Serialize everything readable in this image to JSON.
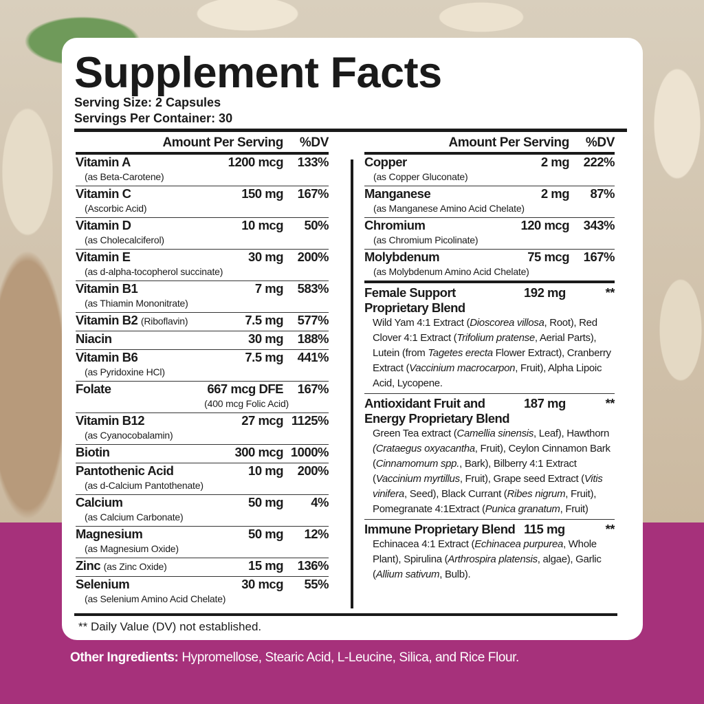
{
  "colors": {
    "accent_band": "#a6317b",
    "card": "#ffffff",
    "text": "#1a1a1a"
  },
  "title": "Supplement Facts",
  "serving_size": "Serving Size: 2 Capsules",
  "servings_per_container": "Servings Per Container: 30",
  "header": {
    "amount": "Amount Per Serving",
    "dv": "%DV"
  },
  "left_rows": [
    {
      "name": "Vitamin A",
      "amount": "1200 mcg",
      "dv": "133%",
      "sub": "(as Beta-Carotene)"
    },
    {
      "name": "Vitamin C",
      "amount": "150 mg",
      "dv": "167%",
      "sub": "(Ascorbic Acid)"
    },
    {
      "name": "Vitamin D",
      "amount": "10 mcg",
      "dv": "50%",
      "sub": "(as Cholecalciferol)"
    },
    {
      "name": "Vitamin E",
      "amount": "30 mg",
      "dv": "200%",
      "sub": "(as d-alpha-tocopherol succinate)"
    },
    {
      "name": "Vitamin B1",
      "amount": "7 mg",
      "dv": "583%",
      "sub": "(as Thiamin Mononitrate)"
    },
    {
      "name": "Vitamin B2",
      "inline": "(Riboflavin)",
      "amount": "7.5 mg",
      "dv": "577%"
    },
    {
      "name": "Niacin",
      "amount": "30 mg",
      "dv": "188%"
    },
    {
      "name": "Vitamin B6",
      "amount": "7.5 mg",
      "dv": "441%",
      "sub": "(as Pyridoxine HCl)"
    },
    {
      "name": "Folate",
      "amount": "667 mcg DFE",
      "dv": "167%",
      "sub_right": "(400 mcg Folic Acid)"
    },
    {
      "name": "Vitamin B12",
      "amount": "27 mcg",
      "dv": "1125%",
      "sub": "(as Cyanocobalamin)"
    },
    {
      "name": "Biotin",
      "amount": "300 mcg",
      "dv": "1000%"
    },
    {
      "name": "Pantothenic Acid",
      "amount": "10 mg",
      "dv": "200%",
      "sub": "(as d-Calcium Pantothenate)"
    },
    {
      "name": "Calcium",
      "amount": "50 mg",
      "dv": "4%",
      "sub": "(as Calcium Carbonate)"
    },
    {
      "name": "Magnesium",
      "amount": "50 mg",
      "dv": "12%",
      "sub": "(as Magnesium Oxide)"
    },
    {
      "name": "Zinc",
      "inline": "(as Zinc Oxide)",
      "amount": "15 mg",
      "dv": "136%"
    },
    {
      "name": "Selenium",
      "amount": "30 mcg",
      "dv": "55%",
      "sub": "(as Selenium Amino Acid Chelate)"
    }
  ],
  "right_rows": [
    {
      "name": "Copper",
      "amount": "2 mg",
      "dv": "222%",
      "sub": "(as Copper Gluconate)"
    },
    {
      "name": "Manganese",
      "amount": "2 mg",
      "dv": "87%",
      "sub": "(as Manganese Amino Acid Chelate)"
    },
    {
      "name": "Chromium",
      "amount": "120 mcg",
      "dv": "343%",
      "sub": "(as Chromium Picolinate)"
    },
    {
      "name": "Molybdenum",
      "amount": "75 mcg",
      "dv": "167%",
      "sub": "(as Molybdenum Amino Acid Chelate)"
    }
  ],
  "blends": [
    {
      "name": "Female Support Proprietary Blend",
      "amount": "192 mg",
      "dv": "**",
      "desc": [
        {
          "t": "Wild Yam 4:1 Extract ("
        },
        {
          "t": "Dioscorea villosa",
          "i": true
        },
        {
          "t": ", Root), Red Clover 4:1 Extract ("
        },
        {
          "t": "Trifolium pratense",
          "i": true
        },
        {
          "t": ", Aerial Parts), Lutein (from "
        },
        {
          "t": "Tagetes erecta",
          "i": true
        },
        {
          "t": " Flower Extract), Cranberry Extract ("
        },
        {
          "t": "Vaccinium macrocarpon",
          "i": true
        },
        {
          "t": ", Fruit), Alpha Lipoic Acid, Lycopene."
        }
      ]
    },
    {
      "name": "Antioxidant Fruit and Energy Proprietary Blend",
      "amount": "187 mg",
      "dv": "**",
      "desc": [
        {
          "t": "Green Tea extract ("
        },
        {
          "t": "Camellia sinensis",
          "i": true
        },
        {
          "t": ", Leaf), Hawthorn "
        },
        {
          "t": "(Crataegus oxyacantha",
          "i": true
        },
        {
          "t": ", Fruit), Ceylon Cinnamon Bark ("
        },
        {
          "t": "Cinnamomum spp.",
          "i": true
        },
        {
          "t": ", Bark), Bilberry 4:1 Extract ("
        },
        {
          "t": "Vaccinium myrtillus",
          "i": true
        },
        {
          "t": ", Fruit), Grape seed Extract ("
        },
        {
          "t": "Vitis vinifera",
          "i": true
        },
        {
          "t": ", Seed), Black Currant ("
        },
        {
          "t": "Ribes nigrum",
          "i": true
        },
        {
          "t": ", Fruit), Pomegranate 4:1Extract ("
        },
        {
          "t": "Punica granatum",
          "i": true
        },
        {
          "t": ", Fruit)"
        }
      ]
    },
    {
      "name": "Immune Proprietary Blend",
      "amount": "115 mg",
      "dv": "**",
      "desc": [
        {
          "t": "Echinacea 4:1 Extract ("
        },
        {
          "t": "Echinacea purpurea",
          "i": true
        },
        {
          "t": ", Whole Plant), Spirulina ("
        },
        {
          "t": "Arthrospira platensis",
          "i": true
        },
        {
          "t": ", algae), Garlic ("
        },
        {
          "t": "Allium sativum",
          "i": true
        },
        {
          "t": ", Bulb)."
        }
      ]
    }
  ],
  "footnote": "** Daily Value (DV) not established.",
  "other_ingredients": {
    "label": "Other Ingredients:",
    "text": " Hypromellose, Stearic Acid, L-Leucine, Silica, and Rice Flour."
  }
}
